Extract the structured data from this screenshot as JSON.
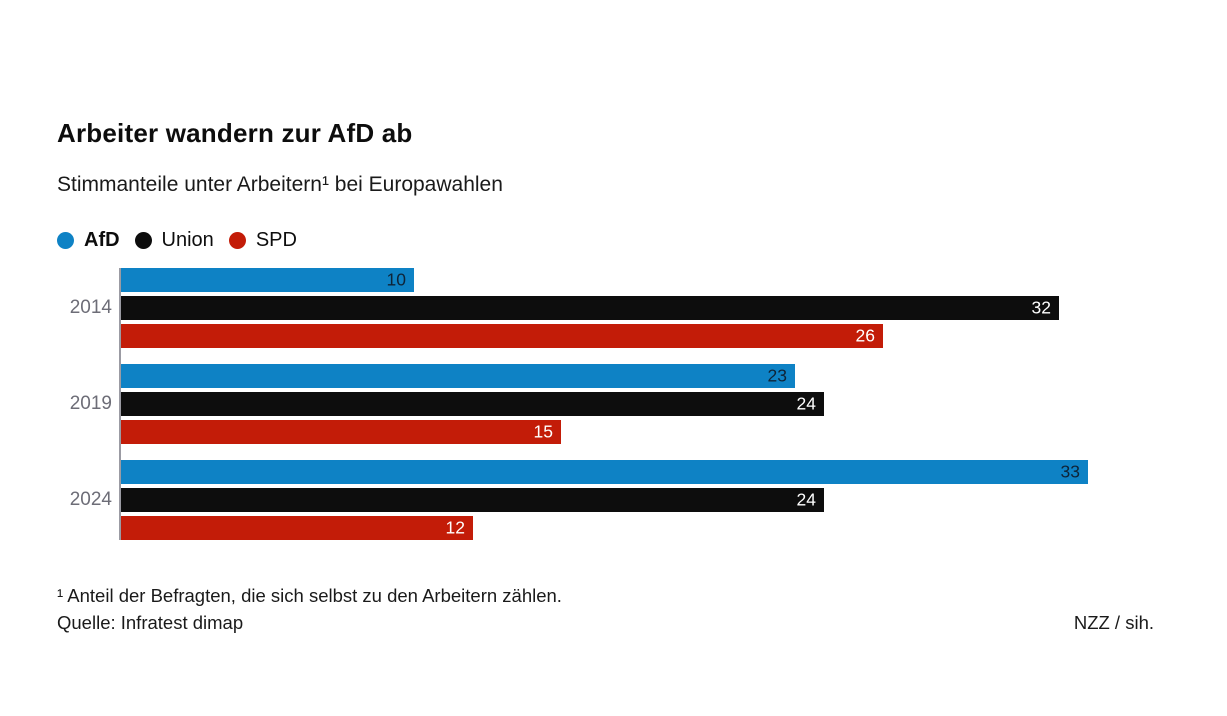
{
  "header": {
    "title": "Arbeiter wandern zur AfD ab",
    "subtitle": "Stimmanteile unter Arbeitern¹ bei Europawahlen"
  },
  "legend": [
    {
      "label": "AfD",
      "color": "#0e82c5",
      "bold": true
    },
    {
      "label": "Union",
      "color": "#0d0d0d",
      "bold": false
    },
    {
      "label": "SPD",
      "color": "#c31c08",
      "bold": false
    }
  ],
  "chart_data": {
    "type": "bar",
    "orientation": "horizontal",
    "title": "Arbeiter wandern zur AfD ab",
    "subtitle": "Stimmanteile unter Arbeitern¹ bei Europawahlen",
    "categories": [
      "2014",
      "2019",
      "2024"
    ],
    "series": [
      {
        "name": "AfD",
        "color": "#0e82c5",
        "label_color": "#0e2438",
        "values": [
          10,
          23,
          33
        ]
      },
      {
        "name": "Union",
        "color": "#0d0d0d",
        "label_color": "#ffffff",
        "values": [
          32,
          24,
          24
        ]
      },
      {
        "name": "SPD",
        "color": "#c31c08",
        "label_color": "#ffffff",
        "values": [
          26,
          15,
          12
        ]
      }
    ],
    "value_axis": {
      "min": 0,
      "max": 33,
      "ticks_visible": false,
      "gridlines": false
    },
    "value_labels": "inside-end",
    "legend_position": "top-left",
    "axis_line_color": "#9b9ba3",
    "category_label_color": "#6d6d77"
  },
  "footer": {
    "footnote": "¹ Anteil der Befragten, die sich selbst zu den Arbeitern zählen.",
    "source": "Quelle: Infratest dimap",
    "credit": "NZZ / sih."
  }
}
